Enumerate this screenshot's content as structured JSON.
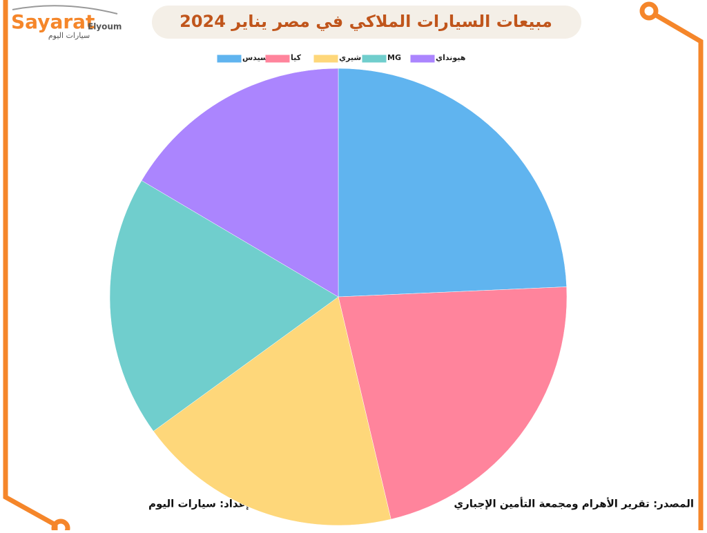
{
  "logo": {
    "name": "Sayarat",
    "suffix": "Elyoum",
    "arabic": "سيارات اليوم"
  },
  "chart_data": {
    "type": "pie",
    "title": "مبيعات السيارات الملاكي في مصر يناير 2024",
    "categories": [
      "مرسيدس",
      "كيا",
      "شيري",
      "MG",
      "هيونداي"
    ],
    "values": [
      24.3,
      22,
      18.7,
      18.5,
      16.5
    ],
    "colors": [
      "#60b4ef",
      "#ff849c",
      "#fed77a",
      "#70cecd",
      "#ab85fe"
    ],
    "legend_position": "top"
  },
  "footer": {
    "credit": "إعداد: سيارات اليوم",
    "source": "المصدر: تقرير الأهرام ومجمعة التأمين الإجباري"
  }
}
